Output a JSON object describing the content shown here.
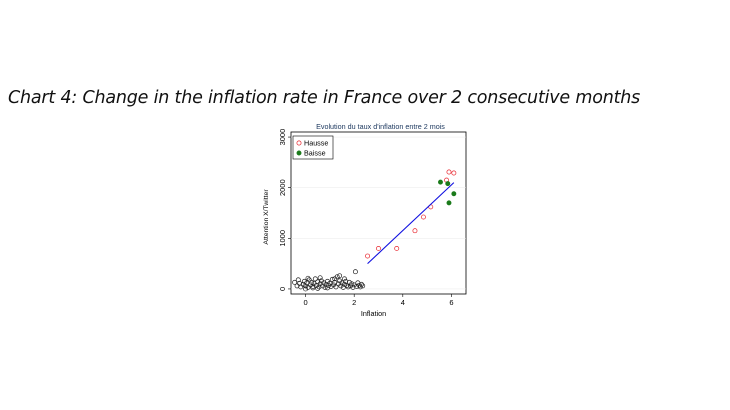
{
  "page_heading": "Chart 4: Change in the inflation rate in France over 2 consecutive months",
  "chart_data": {
    "type": "scatter",
    "title": "Evolution du taux d'inflation entre 2 mois",
    "xlabel": "Inflation",
    "ylabel": "Attention X/Twitter",
    "xlim": [
      -0.6,
      6.6
    ],
    "ylim": [
      -100,
      3100
    ],
    "xticks": [
      0,
      2,
      4,
      6
    ],
    "yticks": [
      0,
      1000,
      2000,
      3000
    ],
    "legend": {
      "placement": "top-left",
      "entries": [
        "Hausse",
        "Baisse"
      ]
    },
    "colors": {
      "hausse": "#e8262e",
      "baisse": "#1a7a1a",
      "other": "#222222",
      "fit_line": "#1010e0",
      "title": "#1f3a60"
    },
    "series": [
      {
        "name": "Hausse",
        "style": "hollow-circle",
        "points": [
          [
            2.55,
            650
          ],
          [
            3.0,
            800
          ],
          [
            3.75,
            800
          ],
          [
            4.5,
            1150
          ],
          [
            4.85,
            1420
          ],
          [
            5.15,
            1620
          ],
          [
            5.8,
            2150
          ],
          [
            5.9,
            2310
          ],
          [
            6.1,
            2290
          ]
        ]
      },
      {
        "name": "Baisse",
        "style": "filled-circle",
        "points": [
          [
            5.55,
            2110
          ],
          [
            5.85,
            2080
          ],
          [
            5.9,
            1700
          ],
          [
            6.1,
            1880
          ]
        ]
      },
      {
        "name": "",
        "style": "hollow-circle",
        "points": [
          [
            -0.45,
            130
          ],
          [
            -0.35,
            60
          ],
          [
            -0.25,
            110
          ],
          [
            -0.2,
            40
          ],
          [
            -0.1,
            90
          ],
          [
            -0.05,
            150
          ],
          [
            0.0,
            60
          ],
          [
            0.05,
            120
          ],
          [
            0.1,
            30
          ],
          [
            0.15,
            180
          ],
          [
            0.2,
            80
          ],
          [
            0.25,
            130
          ],
          [
            0.3,
            50
          ],
          [
            0.35,
            110
          ],
          [
            0.4,
            200
          ],
          [
            0.45,
            70
          ],
          [
            0.5,
            140
          ],
          [
            0.55,
            40
          ],
          [
            0.6,
            100
          ],
          [
            0.65,
            160
          ],
          [
            0.7,
            60
          ],
          [
            0.75,
            120
          ],
          [
            0.8,
            30
          ],
          [
            0.85,
            90
          ],
          [
            0.9,
            150
          ],
          [
            0.95,
            70
          ],
          [
            1.0,
            110
          ],
          [
            1.05,
            50
          ],
          [
            1.1,
            190
          ],
          [
            1.15,
            80
          ],
          [
            1.2,
            130
          ],
          [
            1.25,
            40
          ],
          [
            1.3,
            240
          ],
          [
            1.35,
            100
          ],
          [
            1.4,
            160
          ],
          [
            1.45,
            60
          ],
          [
            1.5,
            120
          ],
          [
            1.55,
            30
          ],
          [
            1.6,
            90
          ],
          [
            1.65,
            150
          ],
          [
            1.7,
            70
          ],
          [
            1.75,
            40
          ],
          [
            1.8,
            130
          ],
          [
            1.85,
            60
          ],
          [
            1.9,
            100
          ],
          [
            1.95,
            30
          ],
          [
            2.0,
            80
          ],
          [
            2.05,
            340
          ],
          [
            2.1,
            50
          ],
          [
            2.15,
            120
          ],
          [
            2.2,
            70
          ],
          [
            2.25,
            40
          ],
          [
            2.3,
            90
          ],
          [
            2.35,
            60
          ],
          [
            -0.3,
            180
          ],
          [
            0.1,
            210
          ],
          [
            0.3,
            20
          ],
          [
            0.6,
            220
          ],
          [
            0.9,
            20
          ],
          [
            1.2,
            200
          ],
          [
            1.4,
            260
          ],
          [
            1.6,
            200
          ],
          [
            0.0,
            0
          ],
          [
            0.5,
            10
          ]
        ]
      }
    ],
    "fit_line": [
      [
        2.55,
        500
      ],
      [
        6.1,
        2100
      ]
    ]
  }
}
